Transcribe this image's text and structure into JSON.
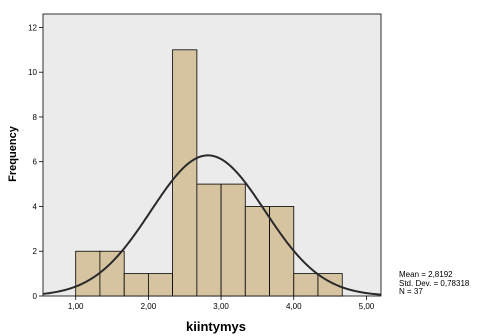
{
  "chart_data": {
    "type": "histogram",
    "xlabel": "kiintymys",
    "ylabel": "Frequency",
    "xlim": [
      0.55,
      5.2
    ],
    "ylim": [
      0,
      12.6
    ],
    "xticks": [
      "1,00",
      "2,00",
      "3,00",
      "4,00",
      "5,00"
    ],
    "xtick_values": [
      1,
      2,
      3,
      4,
      5
    ],
    "yticks": [
      "0",
      "2",
      "4",
      "6",
      "8",
      "10",
      "12"
    ],
    "ytick_values": [
      0,
      2,
      4,
      6,
      8,
      10,
      12
    ],
    "bin_edges": [
      1.0,
      1.333,
      1.667,
      2.0,
      2.333,
      2.667,
      3.0,
      3.333,
      3.667,
      4.0,
      4.333,
      4.667
    ],
    "counts": [
      2,
      2,
      1,
      1,
      11,
      5,
      5,
      4,
      4,
      1,
      1
    ],
    "bar_color": "#d6c4a0",
    "curve": {
      "type": "normal",
      "mean": 2.8192,
      "sd": 0.78318,
      "n": 37
    },
    "stats": {
      "mean": "Mean = 2,8192",
      "std": "Std. Dev. = 0,78318",
      "n": "N = 37"
    }
  }
}
